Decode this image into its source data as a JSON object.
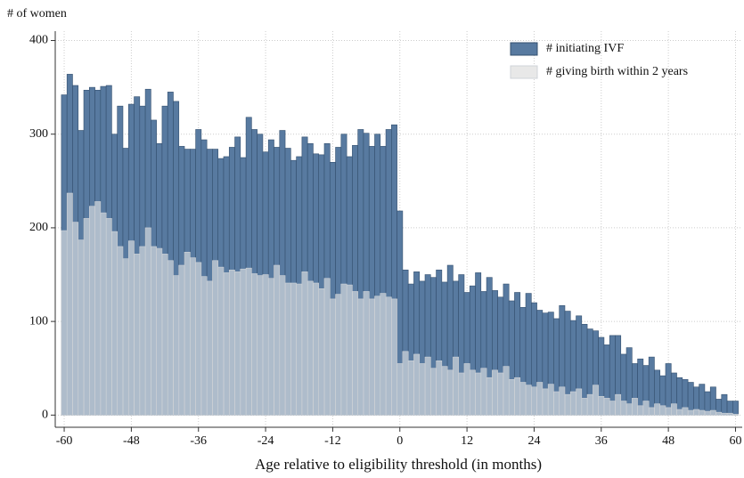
{
  "chart_data": {
    "type": "histogram-overlay",
    "y_title": "# of women",
    "x_title": "Age relative to eligibility threshold (in months)",
    "x": [
      -60,
      -59,
      -58,
      -57,
      -56,
      -55,
      -54,
      -53,
      -52,
      -51,
      -50,
      -49,
      -48,
      -47,
      -46,
      -45,
      -44,
      -43,
      -42,
      -41,
      -40,
      -39,
      -38,
      -37,
      -36,
      -35,
      -34,
      -33,
      -32,
      -31,
      -30,
      -29,
      -28,
      -27,
      -26,
      -25,
      -24,
      -23,
      -22,
      -21,
      -20,
      -19,
      -18,
      -17,
      -16,
      -15,
      -14,
      -13,
      -12,
      -11,
      -10,
      -9,
      -8,
      -7,
      -6,
      -5,
      -4,
      -3,
      -2,
      -1,
      0,
      1,
      2,
      3,
      4,
      5,
      6,
      7,
      8,
      9,
      10,
      11,
      12,
      13,
      14,
      15,
      16,
      17,
      18,
      19,
      20,
      21,
      22,
      23,
      24,
      25,
      26,
      27,
      28,
      29,
      30,
      31,
      32,
      33,
      34,
      35,
      36,
      37,
      38,
      39,
      40,
      41,
      42,
      43,
      44,
      45,
      46,
      47,
      48,
      49,
      50,
      51,
      52,
      53,
      54,
      55,
      56,
      57,
      58,
      59,
      60
    ],
    "series": [
      {
        "name": "# initiating IVF",
        "color": "#587aa0",
        "stroke": "#34506f",
        "opacity": 1,
        "values": [
          342,
          364,
          352,
          304,
          347,
          350,
          347,
          351,
          352,
          300,
          330,
          285,
          332,
          340,
          330,
          348,
          315,
          290,
          330,
          345,
          335,
          287,
          284,
          284,
          305,
          294,
          284,
          284,
          274,
          276,
          286,
          297,
          275,
          318,
          305,
          300,
          281,
          294,
          286,
          304,
          285,
          272,
          276,
          297,
          290,
          279,
          278,
          290,
          270,
          286,
          300,
          276,
          288,
          305,
          301,
          287,
          300,
          287,
          305,
          310,
          218,
          155,
          140,
          153,
          143,
          150,
          147,
          155,
          142,
          160,
          143,
          150,
          131,
          138,
          152,
          132,
          147,
          133,
          126,
          140,
          122,
          131,
          115,
          130,
          120,
          112,
          109,
          110,
          103,
          117,
          111,
          101,
          106,
          97,
          92,
          90,
          83,
          75,
          85,
          85,
          65,
          72,
          55,
          60,
          53,
          62,
          48,
          42,
          55,
          45,
          40,
          38,
          35,
          30,
          33,
          25,
          30,
          17,
          22,
          15,
          15
        ]
      },
      {
        "name": "# giving birth within 2 years",
        "color": "#e8e8e8",
        "stroke": "#cfd3d8",
        "opacity": 0.6,
        "values": [
          197,
          237,
          206,
          187,
          210,
          223,
          228,
          216,
          210,
          196,
          180,
          167,
          186,
          172,
          180,
          200,
          180,
          178,
          172,
          165,
          149,
          160,
          174,
          168,
          163,
          148,
          143,
          165,
          158,
          152,
          155,
          153,
          156,
          157,
          151,
          149,
          150,
          146,
          160,
          149,
          141,
          141,
          140,
          153,
          143,
          141,
          135,
          146,
          124,
          129,
          140,
          139,
          132,
          124,
          132,
          124,
          127,
          130,
          126,
          124,
          55,
          68,
          58,
          65,
          55,
          62,
          50,
          58,
          52,
          48,
          62,
          45,
          55,
          48,
          45,
          50,
          40,
          48,
          45,
          52,
          38,
          40,
          35,
          32,
          30,
          35,
          28,
          33,
          25,
          30,
          22,
          25,
          28,
          18,
          22,
          32,
          20,
          18,
          15,
          22,
          15,
          12,
          18,
          10,
          15,
          8,
          12,
          10,
          8,
          12,
          6,
          8,
          5,
          6,
          5,
          4,
          5,
          3,
          2,
          2,
          1
        ]
      }
    ],
    "bar_width": 1,
    "xlim": [
      -61.6,
      61.2
    ],
    "xticks": [
      -60,
      -48,
      -36,
      -24,
      -12,
      0,
      12,
      24,
      36,
      48,
      60
    ],
    "ylim": [
      -13,
      410
    ],
    "yticks": [
      0,
      100,
      200,
      300,
      400
    ],
    "grid": true,
    "legend": "top-right"
  }
}
